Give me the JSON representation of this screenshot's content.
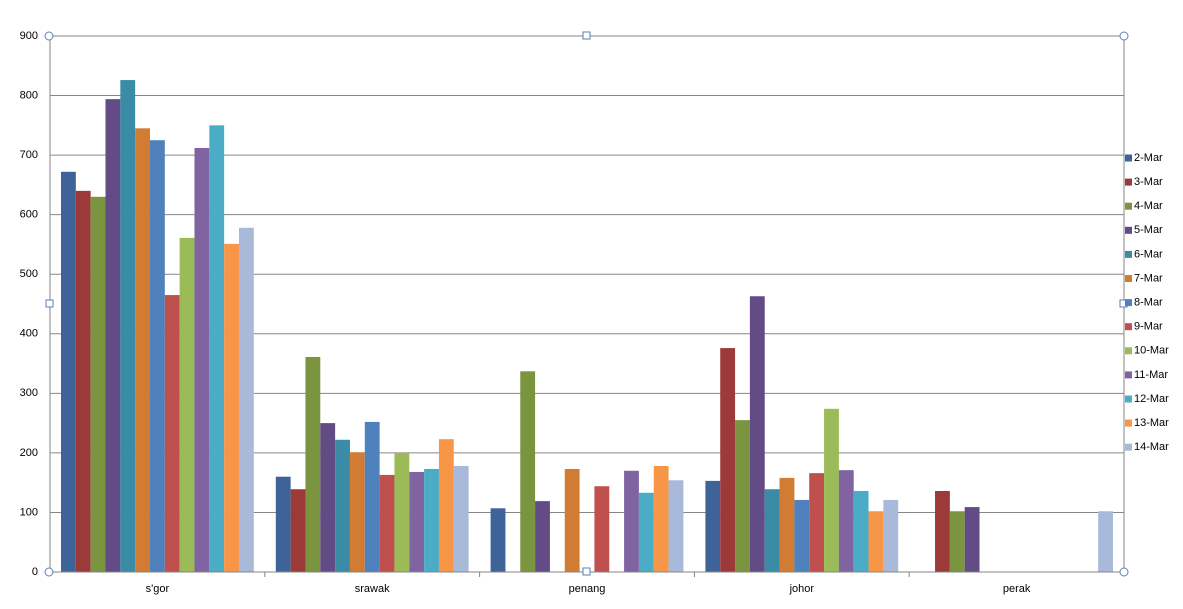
{
  "chart_data": {
    "type": "bar",
    "categories": [
      "s'gor",
      "srawak",
      "penang",
      "johor",
      "perak"
    ],
    "series": [
      {
        "name": "2-Mar",
        "color": "#3d6399",
        "values": [
          672,
          160,
          107,
          153,
          null
        ]
      },
      {
        "name": "3-Mar",
        "color": "#9b3a38",
        "values": [
          640,
          139,
          null,
          376,
          136
        ]
      },
      {
        "name": "4-Mar",
        "color": "#7b9440",
        "values": [
          630,
          361,
          337,
          255,
          102
        ]
      },
      {
        "name": "5-Mar",
        "color": "#634b86",
        "values": [
          794,
          250,
          119,
          463,
          109
        ]
      },
      {
        "name": "6-Mar",
        "color": "#3a8ba5",
        "values": [
          826,
          222,
          null,
          139,
          null
        ]
      },
      {
        "name": "7-Mar",
        "color": "#d17b33",
        "values": [
          745,
          201,
          173,
          158,
          null
        ]
      },
      {
        "name": "8-Mar",
        "color": "#4f81bd",
        "values": [
          725,
          252,
          null,
          121,
          null
        ]
      },
      {
        "name": "9-Mar",
        "color": "#c0504d",
        "values": [
          465,
          163,
          144,
          166,
          null
        ]
      },
      {
        "name": "10-Mar",
        "color": "#9bbb59",
        "values": [
          561,
          200,
          null,
          274,
          null
        ]
      },
      {
        "name": "11-Mar",
        "color": "#8064a2",
        "values": [
          712,
          168,
          170,
          171,
          null
        ]
      },
      {
        "name": "12-Mar",
        "color": "#4bacc6",
        "values": [
          750,
          173,
          133,
          136,
          null
        ]
      },
      {
        "name": "13-Mar",
        "color": "#f79646",
        "values": [
          551,
          223,
          178,
          102,
          null
        ]
      },
      {
        "name": "14-Mar",
        "color": "#a8b9d9",
        "values": [
          578,
          178,
          154,
          121,
          102
        ]
      }
    ],
    "ylim": [
      0,
      900
    ],
    "yticks": [
      0,
      100,
      200,
      300,
      400,
      500,
      600,
      700,
      800,
      900
    ],
    "grid": true,
    "legend": "right"
  }
}
